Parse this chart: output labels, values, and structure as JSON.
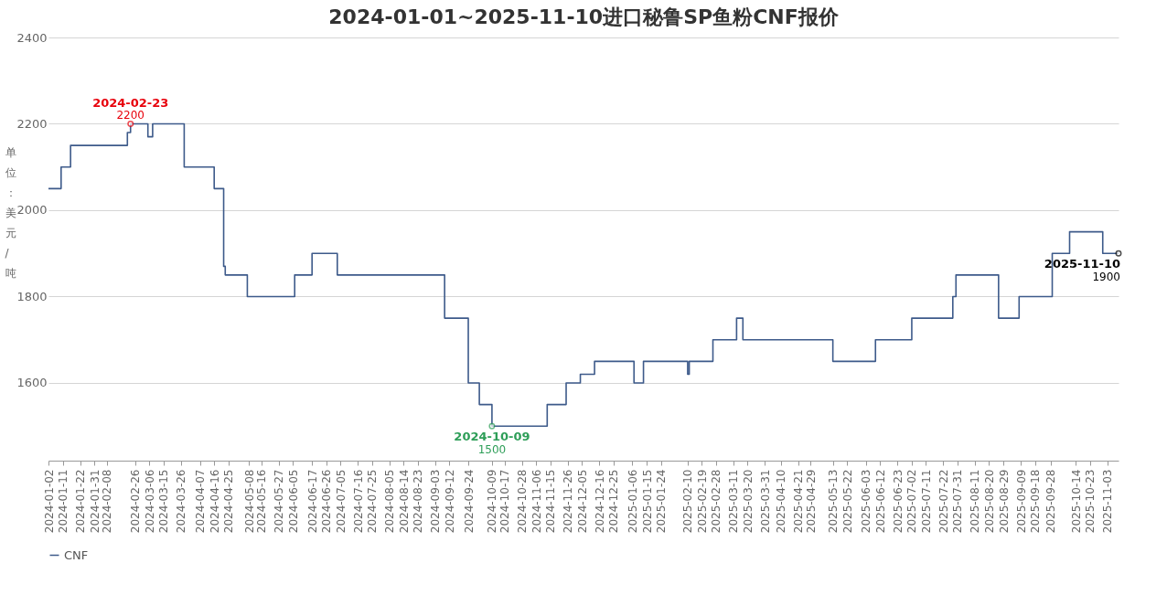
{
  "chart_data": {
    "type": "step",
    "title": "2024-01-01~2025-11-10进口秘鲁SP鱼粉CNF报价",
    "ylabel": "单位：美元/吨",
    "x": [
      "2024-01-02",
      "2024-01-10",
      "2024-01-16",
      "2024-02-21",
      "2024-02-23",
      "2024-03-05",
      "2024-03-08",
      "2024-03-28",
      "2024-04-16",
      "2024-04-22",
      "2024-04-23",
      "2024-05-07",
      "2024-06-06",
      "2024-06-17",
      "2024-07-03",
      "2024-09-09",
      "2024-09-24",
      "2024-10-01",
      "2024-10-09",
      "2024-11-13",
      "2024-11-25",
      "2024-12-04",
      "2024-12-13",
      "2025-01-07",
      "2025-01-13",
      "2025-02-10",
      "2025-02-11",
      "2025-02-26",
      "2025-03-13",
      "2025-03-17",
      "2025-05-13",
      "2025-06-09",
      "2025-07-02",
      "2025-07-28",
      "2025-07-30",
      "2025-08-26",
      "2025-09-08",
      "2025-09-29",
      "2025-10-10",
      "2025-10-31",
      "2025-11-10"
    ],
    "series": [
      {
        "name": "CNF",
        "color": "#3d5a8a",
        "values": [
          2050,
          2100,
          2150,
          2180,
          2200,
          2170,
          2200,
          2100,
          2050,
          1870,
          1850,
          1800,
          1850,
          1900,
          1850,
          1750,
          1600,
          1550,
          1500,
          1550,
          1600,
          1620,
          1650,
          1600,
          1650,
          1620,
          1650,
          1700,
          1750,
          1700,
          1650,
          1700,
          1750,
          1800,
          1850,
          1750,
          1800,
          1900,
          1950,
          1900,
          1900
        ]
      }
    ],
    "xlim": [
      "2024-01-02",
      "2025-11-10"
    ],
    "xticks": [
      "2024-01-02",
      "2024-01-11",
      "2024-01-22",
      "2024-01-31",
      "2024-02-08",
      "2024-02-26",
      "2024-03-06",
      "2024-03-15",
      "2024-03-26",
      "2024-04-07",
      "2024-04-16",
      "2024-04-25",
      "2024-05-08",
      "2024-05-16",
      "2024-05-27",
      "2024-06-05",
      "2024-06-17",
      "2024-06-26",
      "2024-07-05",
      "2024-07-16",
      "2024-07-25",
      "2024-08-05",
      "2024-08-14",
      "2024-08-23",
      "2024-09-03",
      "2024-09-12",
      "2024-09-24",
      "2024-10-09",
      "2024-10-17",
      "2024-10-28",
      "2024-11-06",
      "2024-11-15",
      "2024-11-26",
      "2024-12-05",
      "2024-12-16",
      "2024-12-25",
      "2025-01-06",
      "2025-01-15",
      "2025-01-24",
      "2025-02-10",
      "2025-02-19",
      "2025-02-28",
      "2025-03-11",
      "2025-03-20",
      "2025-03-31",
      "2025-04-10",
      "2025-04-21",
      "2025-04-29",
      "2025-05-13",
      "2025-05-22",
      "2025-06-03",
      "2025-06-12",
      "2025-06-23",
      "2025-07-02",
      "2025-07-11",
      "2025-07-22",
      "2025-07-31",
      "2025-08-11",
      "2025-08-20",
      "2025-08-29",
      "2025-09-09",
      "2025-09-18",
      "2025-09-28",
      "2025-10-14",
      "2025-10-23",
      "2025-11-03"
    ],
    "ylim": [
      1420,
      2400
    ],
    "yticks": [
      1600,
      1800,
      2000,
      2200,
      2400
    ],
    "grid": "y",
    "legend": "bottom",
    "marker": "none",
    "annotations": [
      {
        "text": "2024-02-23",
        "x": "2024-02-23",
        "y": 2200
      },
      {
        "text": "2200",
        "x": "2024-02-23",
        "y": 2200
      },
      {
        "text": "2024-10-09",
        "x": "2024-10-09",
        "y": 1500
      },
      {
        "text": "1500",
        "x": "2024-10-09",
        "y": 1500
      },
      {
        "text": "2025-11-10",
        "x": "2025-11-10",
        "y": 1900
      },
      {
        "text": "1900",
        "x": "2025-11-10",
        "y": 1900
      }
    ]
  }
}
